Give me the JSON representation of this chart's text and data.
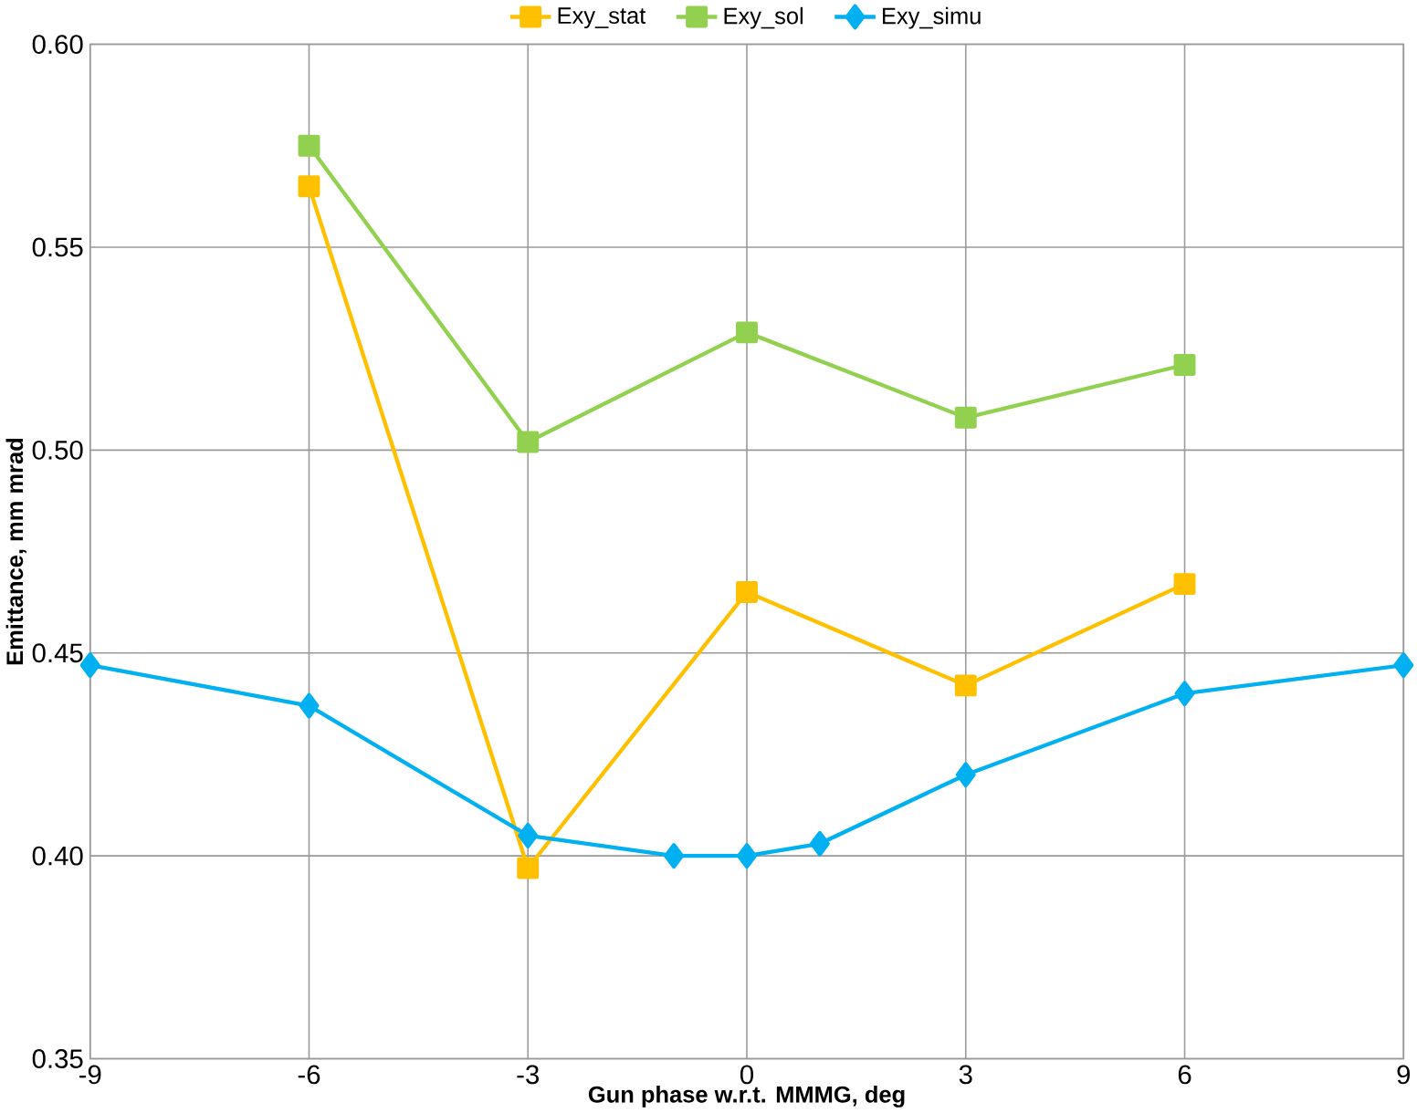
{
  "chart_data": {
    "type": "line",
    "xlabel": "Gun phase w.r.t. MMMG, deg",
    "ylabel": "Emittance, mm mrad",
    "xlim": [
      -9,
      9
    ],
    "xticks": [
      -9,
      -6,
      -3,
      0,
      3,
      6,
      9
    ],
    "ylim": [
      0.35,
      0.6
    ],
    "yticks": [
      {
        "value": 0.35,
        "label": "0.35"
      },
      {
        "value": 0.4,
        "label": "0.40"
      },
      {
        "value": 0.45,
        "label": "0.45"
      },
      {
        "value": 0.5,
        "label": "0.50"
      },
      {
        "value": 0.55,
        "label": "0.55"
      },
      {
        "value": 0.6,
        "label": "0.60"
      }
    ],
    "grid": true,
    "legend": "top",
    "series": [
      {
        "name": "Exy_stat",
        "color": "#ffc000",
        "marker": "square",
        "x": [
          -6,
          -3,
          0,
          3,
          6
        ],
        "values": [
          0.565,
          0.397,
          0.465,
          0.442,
          0.467
        ]
      },
      {
        "name": "Exy_sol",
        "color": "#92d050",
        "marker": "square",
        "x": [
          -6,
          -3,
          0,
          3,
          6
        ],
        "values": [
          0.575,
          0.502,
          0.529,
          0.508,
          0.521
        ]
      },
      {
        "name": "Exy_simu",
        "color": "#00b0f0",
        "marker": "diamond",
        "x": [
          -9,
          -6,
          -3,
          -1,
          0,
          1,
          3,
          6,
          9
        ],
        "values": [
          0.447,
          0.437,
          0.405,
          0.4,
          0.4,
          0.403,
          0.42,
          0.44,
          0.447
        ]
      }
    ]
  }
}
